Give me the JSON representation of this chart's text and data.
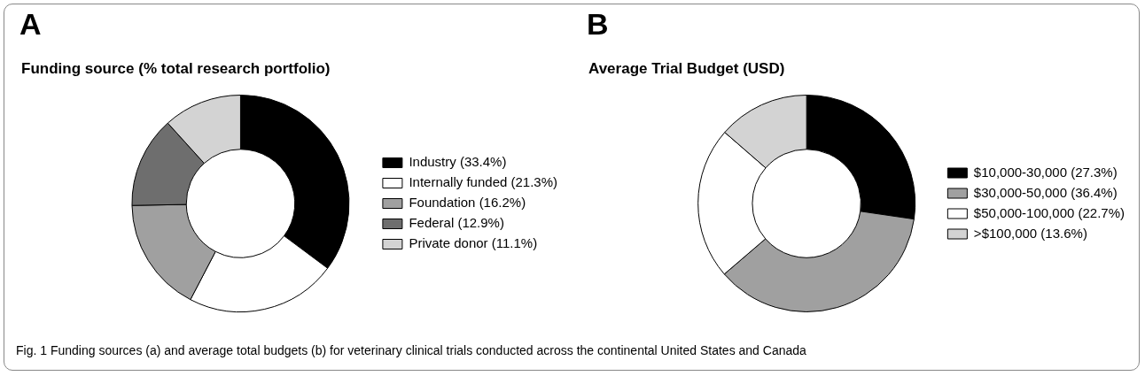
{
  "chart_data": [
    {
      "type": "donut",
      "title": "Funding source (% total research portfolio)",
      "annotations": [
        "A",
        "Fig. 1 Funding sources (a) and average total budgets (b) for veterinary clinical trials conducted across the continental United States and Canada"
      ],
      "categories": [
        "Industry (33.4%)",
        "Internally funded (21.3%)",
        "Foundation (16.2%)",
        "Federal (12.9%)",
        "Private donor (11.1%)"
      ],
      "values": [
        33.4,
        21.3,
        16.2,
        12.9,
        11.1
      ],
      "colors": [
        "#000000",
        "#ffffff",
        "#a0a0a0",
        "#6e6e6e",
        "#d3d3d3"
      ],
      "legend": "right"
    },
    {
      "type": "donut",
      "title": "Average  Trial Budget (USD)",
      "annotations": [
        "B"
      ],
      "categories": [
        "$10,000-30,000 (27.3%)",
        "$30,000-50,000 (36.4%)",
        "$50,000-100,000 (22.7%)",
        ">$100,000 (13.6%)"
      ],
      "values": [
        27.3,
        36.4,
        22.7,
        13.6
      ],
      "colors": [
        "#000000",
        "#a0a0a0",
        "#ffffff",
        "#d3d3d3"
      ],
      "legend": "right"
    }
  ]
}
